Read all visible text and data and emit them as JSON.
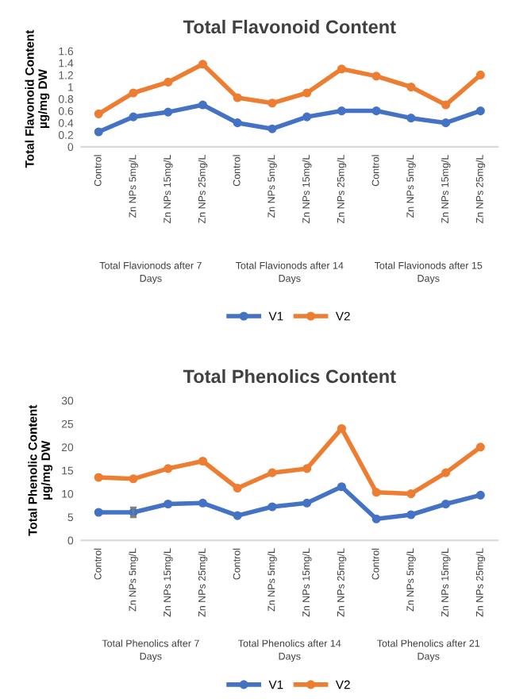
{
  "chart_data": [
    {
      "type": "line",
      "title": "Total Flavonoid Content",
      "ylabel": "Total Flavonoid Content\nµg/mg DW",
      "categories": [
        "Control",
        "Zn NPs 5mg/L",
        "Zn NPs 15mg/L",
        "Zn NPs 25mg/L",
        "Control",
        "Zn NPs 5mg/L",
        "Zn NPs 15mg/L",
        "Zn NPs 25mg/L",
        "Control",
        "Zn NPs 5mg/L",
        "Zn NPs 15mg/L",
        "Zn NPs 25mg/L"
      ],
      "series": [
        {
          "name": "V1",
          "color": "#4472c4",
          "values": [
            0.25,
            0.5,
            0.58,
            0.7,
            0.4,
            0.3,
            0.5,
            0.6,
            0.6,
            0.48,
            0.4,
            0.6
          ]
        },
        {
          "name": "V2",
          "color": "#ed7d31",
          "values": [
            0.55,
            0.9,
            1.08,
            1.38,
            0.82,
            0.73,
            0.9,
            1.3,
            1.18,
            1.0,
            0.7,
            1.2
          ]
        }
      ],
      "annotations": [
        "Total Flavionods after 7\nDays",
        "Total Flavionods after 14\nDays",
        "Total Flavionods after 15\nDays"
      ],
      "ylim": [
        0,
        1.6
      ],
      "yticks": [
        0,
        0.2,
        0.4,
        0.6,
        0.8,
        1,
        1.2,
        1.4,
        1.6
      ],
      "grid": false,
      "legend": "bottom",
      "marker": "circle",
      "line_style": "solid"
    },
    {
      "type": "line",
      "title": "Total Phenolics Content",
      "ylabel": "Total Phenolic Content\nµg/mg DW",
      "categories": [
        "Control",
        "Zn NPs 5mg/L",
        "Zn NPs 15mg/L",
        "Zn NPs 25mg/L",
        "Control",
        "Zn NPs 5mg/L",
        "Zn NPs 15mg/L",
        "Zn NPs 25mg/L",
        "Control",
        "Zn NPs 5mg/L",
        "Zn NPs 15mg/L",
        "Zn NPs 25mg/L"
      ],
      "series": [
        {
          "name": "V1",
          "color": "#4472c4",
          "values": [
            6,
            6,
            7.8,
            8,
            5.3,
            7.2,
            8,
            11.5,
            4.6,
            5.5,
            7.8,
            9.7
          ],
          "errors": [
            null,
            1,
            null,
            null,
            null,
            null,
            null,
            null,
            null,
            null,
            null,
            null
          ]
        },
        {
          "name": "V2",
          "color": "#ed7d31",
          "values": [
            13.5,
            13.2,
            15.4,
            17,
            11.2,
            14.5,
            15.4,
            24,
            10.3,
            10,
            14.5,
            20
          ]
        }
      ],
      "annotations": [
        "Total Phenolics after 7\nDays",
        "Total Phenolics after 14\nDays",
        "Total Phenolics after 21\nDays"
      ],
      "ylim": [
        0,
        30
      ],
      "yticks": [
        0,
        5,
        10,
        15,
        20,
        25,
        30
      ],
      "grid": false,
      "legend": "bottom",
      "marker": "circle",
      "line_style": "solid"
    }
  ]
}
